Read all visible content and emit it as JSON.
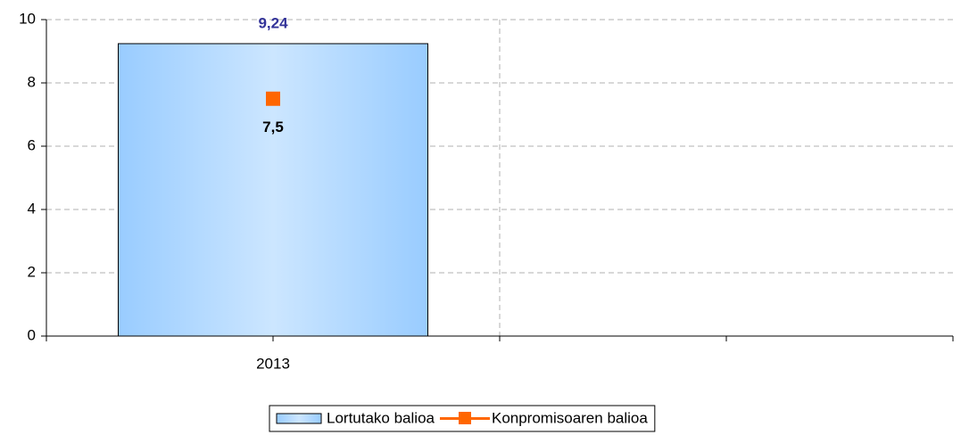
{
  "chart_data": {
    "type": "bar",
    "categories": [
      "2013",
      null
    ],
    "series": [
      {
        "name": "Lortutako balioa",
        "type": "bar",
        "color": "#99ccff",
        "values": [
          9.24,
          null
        ],
        "value_labels": [
          "9,24",
          null
        ],
        "label_color": "#333399"
      },
      {
        "name": "Konpromisoaren balioa",
        "type": "line",
        "color": "#ff6600",
        "values": [
          7.5,
          null
        ],
        "value_labels": [
          "7,5",
          null
        ],
        "label_color": "#000000"
      }
    ],
    "ylim": [
      0,
      10
    ],
    "yticks": [
      0,
      2,
      4,
      6,
      8,
      10
    ],
    "grid": true,
    "legend": "bottom"
  }
}
